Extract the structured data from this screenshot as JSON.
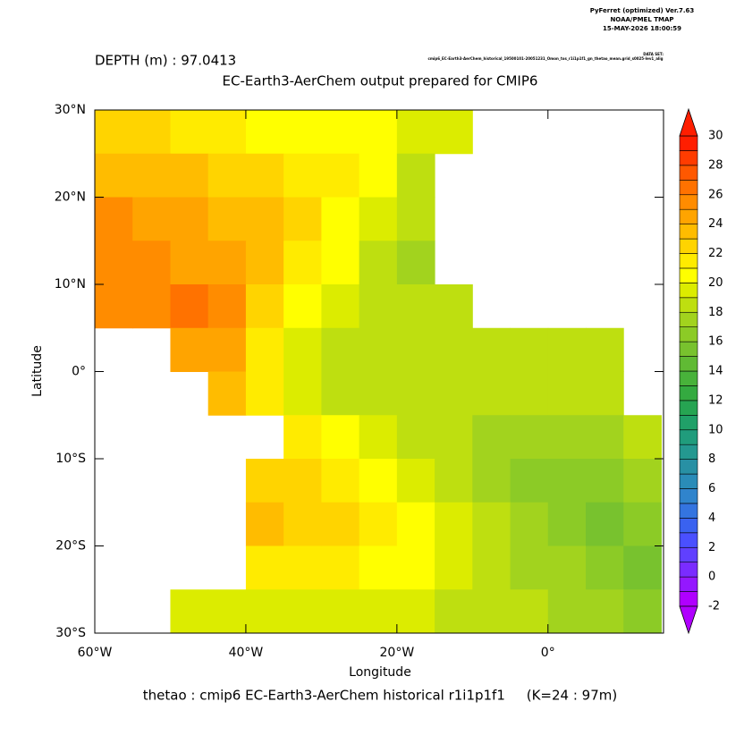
{
  "chart_data": {
    "type": "heatmap",
    "header": [
      "PyFerret (optimized) Ver.7.63",
      "NOAA/PMEL TMAP",
      "15-MAY-2026 18:00:59"
    ],
    "dataset_label": "DATA SET:",
    "dataset": "cmip6_EC-Earth3-AerChem_historical_19500101-20051231_Omon_tos_r1i1p1f1_gn_thetao_mean.grid_s0025-lev1_alig",
    "depth": "DEPTH (m) : 97.0413",
    "title": "EC-Earth3-AerChem output prepared for CMIP6",
    "xlabel": "Longitude",
    "ylabel": "Latitude",
    "footer": "thetao : cmip6 EC-Earth3-AerChem historical r1i1p1f1     (K=24 : 97m)",
    "xlim": [
      -60,
      15.3
    ],
    "ylim": [
      -30,
      30
    ],
    "xticks": [
      {
        "value": -60,
        "label": "60°W"
      },
      {
        "value": -40,
        "label": "40°W"
      },
      {
        "value": -20,
        "label": "20°W"
      },
      {
        "value": 0,
        "label": "0°"
      }
    ],
    "yticks": [
      {
        "value": 30,
        "label": "30°N"
      },
      {
        "value": 20,
        "label": "20°N"
      },
      {
        "value": 10,
        "label": "10°N"
      },
      {
        "value": 0,
        "label": "0°"
      },
      {
        "value": -10,
        "label": "10°S"
      },
      {
        "value": -20,
        "label": "20°S"
      },
      {
        "value": -30,
        "label": "30°S"
      }
    ],
    "x": [
      -57.5,
      -52.5,
      -47.5,
      -42.5,
      -37.5,
      -32.5,
      -27.5,
      -22.5,
      -17.5,
      -12.5,
      -7.5,
      -2.5,
      2.5,
      7.5,
      12.5
    ],
    "y": [
      27.5,
      22.5,
      17.5,
      12.5,
      7.5,
      2.5,
      -2.5,
      -7.5,
      -12.5,
      -17.5,
      -22.5,
      -27.5
    ],
    "values": [
      [
        22,
        22,
        21,
        21,
        20,
        20,
        20,
        20,
        19,
        19,
        null,
        null,
        null,
        null,
        null
      ],
      [
        23,
        23,
        23,
        22,
        22,
        21,
        21,
        20,
        18,
        null,
        null,
        null,
        null,
        null,
        null
      ],
      [
        25,
        24,
        24,
        23,
        23,
        22,
        20,
        19,
        18,
        null,
        null,
        null,
        null,
        null,
        null
      ],
      [
        25,
        25,
        24,
        24,
        23,
        21,
        20,
        18,
        17,
        null,
        null,
        null,
        null,
        null,
        null
      ],
      [
        25,
        25,
        26,
        25,
        22,
        20,
        19,
        18,
        18,
        18,
        null,
        null,
        null,
        null,
        null
      ],
      [
        null,
        null,
        24,
        24,
        21,
        19,
        18,
        18,
        18,
        18,
        18,
        18,
        18,
        18,
        null
      ],
      [
        null,
        null,
        null,
        23,
        21,
        19,
        18,
        18,
        18,
        18,
        18,
        18,
        18,
        18,
        null
      ],
      [
        null,
        null,
        null,
        null,
        null,
        21,
        20,
        19,
        18,
        18,
        17,
        17,
        17,
        17,
        18
      ],
      [
        null,
        null,
        null,
        null,
        22,
        22,
        21,
        20,
        19,
        18,
        17,
        16,
        16,
        16,
        17
      ],
      [
        null,
        null,
        null,
        null,
        23,
        22,
        22,
        21,
        20,
        19,
        18,
        17,
        16,
        15,
        16
      ],
      [
        null,
        null,
        null,
        null,
        21,
        21,
        21,
        20,
        20,
        19,
        18,
        17,
        17,
        16,
        15
      ],
      [
        null,
        null,
        19,
        19,
        19,
        19,
        19,
        19,
        19,
        18,
        18,
        18,
        17,
        17,
        16
      ]
    ],
    "levels": [
      -2,
      -1,
      0,
      1,
      2,
      3,
      4,
      5,
      6,
      7,
      8,
      9,
      10,
      11,
      12,
      13,
      14,
      15,
      16,
      17,
      18,
      19,
      20,
      21,
      22,
      23,
      24,
      25,
      26,
      27,
      28,
      29,
      30
    ],
    "colors": [
      "#b000ff",
      "#9418ff",
      "#7a2cff",
      "#6040ff",
      "#4a50ff",
      "#3a62f0",
      "#3474e0",
      "#3084cc",
      "#2a8cb8",
      "#2890a4",
      "#249890",
      "#209c7c",
      "#20a068",
      "#26a452",
      "#34aa40",
      "#48b23a",
      "#60ba34",
      "#78c22e",
      "#8ccb26",
      "#a2d31e",
      "#bedf10",
      "#dcec00",
      "#ffff00",
      "#ffeb00",
      "#ffd400",
      "#ffbc00",
      "#ffa400",
      "#ff8c00",
      "#ff7200",
      "#ff5800",
      "#ff3c00",
      "#ff1e00"
    ]
  }
}
